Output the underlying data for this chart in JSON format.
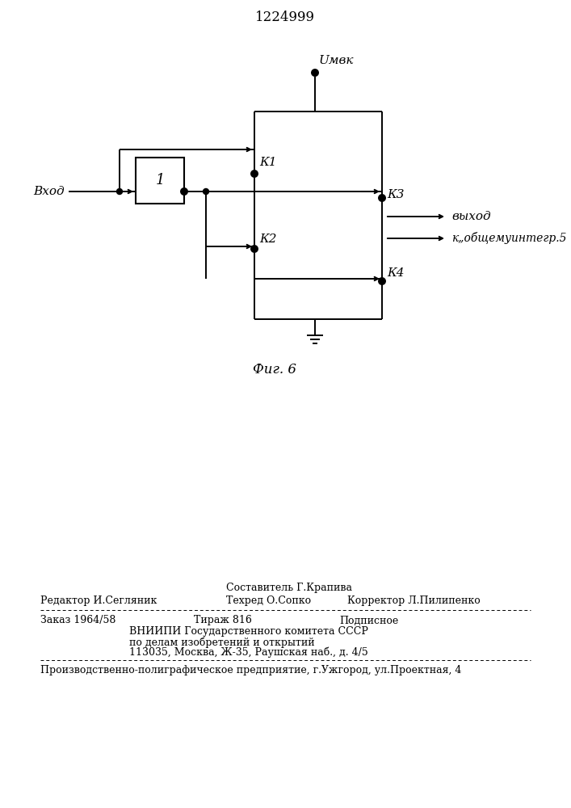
{
  "title": "1224999",
  "fig_caption": "Фиг. 6",
  "background_color": "#ffffff",
  "line_color": "#000000",
  "label_vhod": "Вход",
  "label_block1": "1",
  "label_k1": "К1",
  "label_k2": "К2",
  "label_k3": "К3",
  "label_k4": "К4",
  "label_umbk": "Uмвк",
  "label_vyhod": "выход",
  "label_k_obsh": "к„общемуинтегр.5",
  "footer_sostavitel": "Составитель Г.Крапива",
  "footer_redaktor": "Редактор И.Сегляник",
  "footer_tehred": "Техред О.Сопко",
  "footer_korrektor": "Корректор Л.Пилипенко",
  "footer_zakaz": "Заказ 1964/58",
  "footer_tirazh": "Тираж 816",
  "footer_podpisnoe": "Подписное",
  "footer_vniipи": "ВНИИПИ Государственного комитета СССР",
  "footer_po_delam": "по делам изобретений и открытий",
  "footer_address": "113035, Москва, Ж-35, Раушская наб., д. 4/5",
  "footer_proizv": "Производственно-полиграфическое предприятие, г.Ужгород, ул.Проектная, 4"
}
